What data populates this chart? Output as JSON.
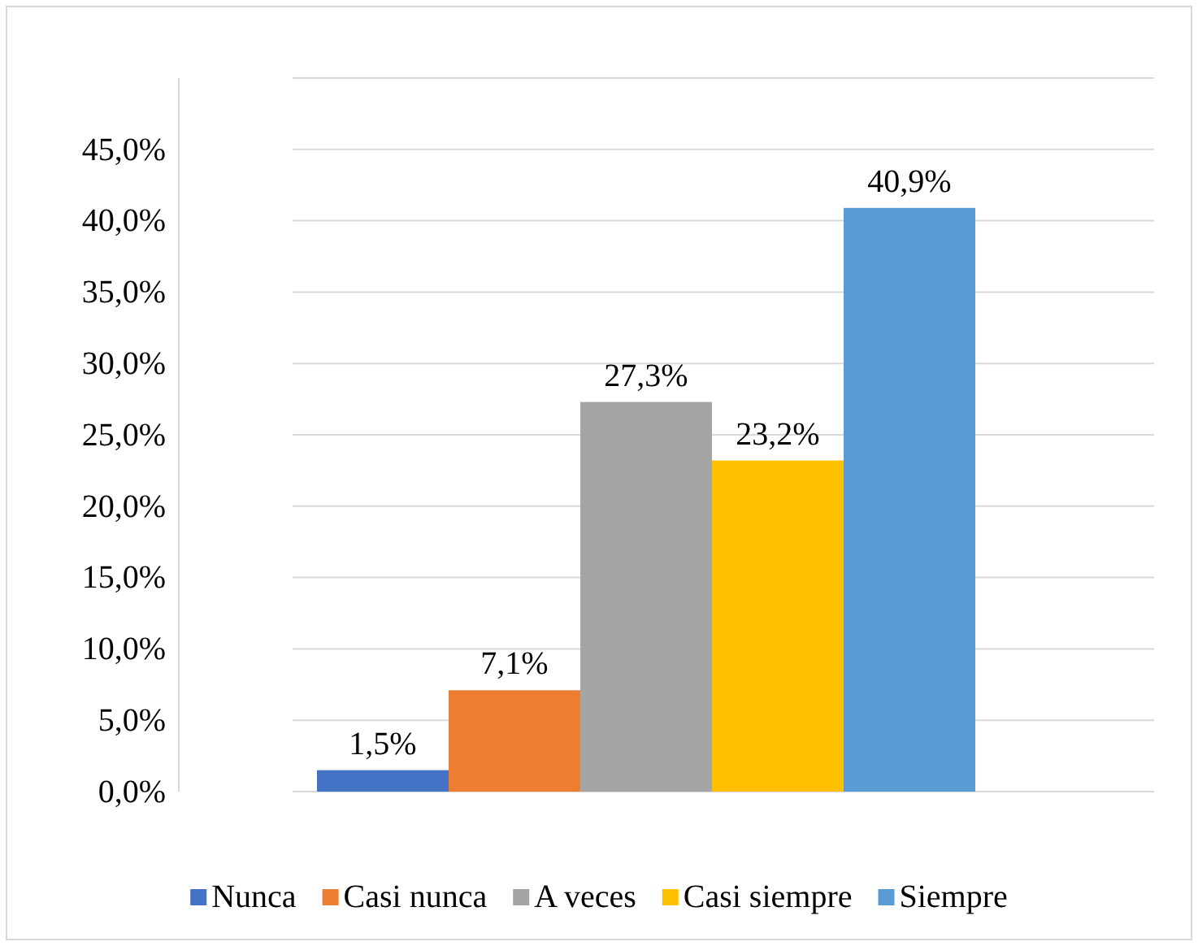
{
  "chart_data": {
    "type": "bar",
    "categories": [
      null
    ],
    "series": [
      {
        "name": "Nunca",
        "color": "#4472c4",
        "values": [
          1.5
        ],
        "value_labels": [
          "1,5%"
        ]
      },
      {
        "name": "Casi nunca",
        "color": "#ed7d31",
        "values": [
          7.1
        ],
        "value_labels": [
          "7,1%"
        ]
      },
      {
        "name": "A veces",
        "color": "#a5a5a5",
        "values": [
          27.3
        ],
        "value_labels": [
          "27,3%"
        ]
      },
      {
        "name": "Casi siempre",
        "color": "#ffc000",
        "values": [
          23.2
        ],
        "value_labels": [
          "23,2%"
        ]
      },
      {
        "name": "Siempre",
        "color": "#5b9bd5",
        "values": [
          40.9
        ],
        "value_labels": [
          "40,9%"
        ]
      }
    ],
    "ylim": [
      0,
      50
    ],
    "yticks": [
      {
        "value": 0,
        "label": "0,0%"
      },
      {
        "value": 5,
        "label": "5,0%"
      },
      {
        "value": 10,
        "label": "10,0%"
      },
      {
        "value": 15,
        "label": "15,0%"
      },
      {
        "value": 20,
        "label": "20,0%"
      },
      {
        "value": 25,
        "label": "25,0%"
      },
      {
        "value": 30,
        "label": "30,0%"
      },
      {
        "value": 35,
        "label": "35,0%"
      },
      {
        "value": 40,
        "label": "40,0%"
      },
      {
        "value": 45,
        "label": "45,0%"
      },
      {
        "value": 50,
        "label": null
      }
    ],
    "grid": "y",
    "legend": "bottom"
  }
}
